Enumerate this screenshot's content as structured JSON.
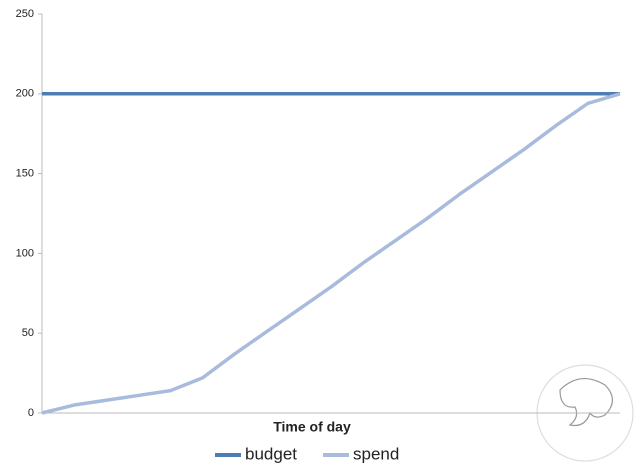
{
  "chart_data": {
    "type": "line",
    "x_label": "Time of day",
    "categories": [
      null,
      null,
      null,
      null,
      null,
      null,
      null,
      null,
      null,
      null,
      null,
      null,
      null,
      null,
      null,
      null,
      null,
      null,
      null
    ],
    "series": [
      {
        "name": "budget",
        "color": "#4d7db3",
        "values": [
          200,
          200,
          200,
          200,
          200,
          200,
          200,
          200,
          200,
          200,
          200,
          200,
          200,
          200,
          200,
          200,
          200,
          200,
          200
        ]
      },
      {
        "name": "spend",
        "color": "#a9bbdc",
        "values": [
          0,
          5,
          8,
          11,
          14,
          22,
          37,
          51,
          65,
          79,
          94,
          108,
          122,
          137,
          151,
          165,
          180,
          194,
          200
        ]
      }
    ],
    "ylim": [
      0,
      250
    ],
    "yticks": [
      0,
      50,
      100,
      150,
      200,
      250
    ],
    "grid": false,
    "legend": "bottom"
  }
}
